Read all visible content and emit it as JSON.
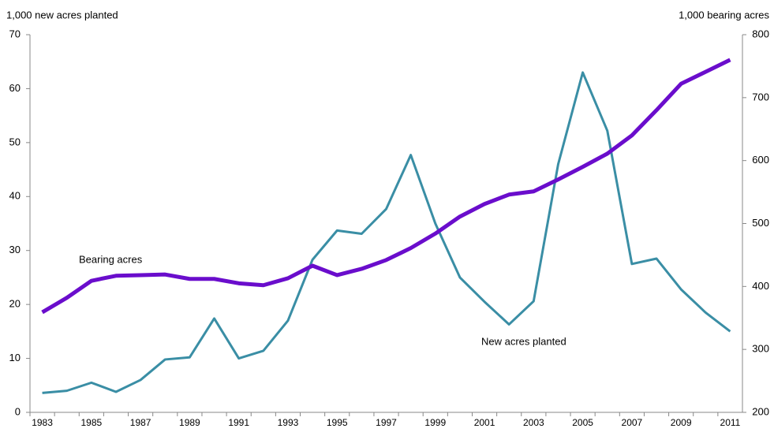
{
  "chart_data": {
    "type": "line",
    "y_label": "1,000 new acres planted",
    "y2_label": "1,000 bearing  acres",
    "categories": [
      "1983",
      null,
      "1985",
      null,
      "1987",
      null,
      "1989",
      null,
      "1991",
      null,
      "1993",
      null,
      "1995",
      null,
      "1997",
      null,
      "1999",
      null,
      "2001",
      null,
      "2003",
      null,
      "2005",
      null,
      "2007",
      null,
      "2009",
      null,
      "2011"
    ],
    "series": [
      {
        "name": "New acres planted",
        "color": "#3a8ea5",
        "values": [
          3.6,
          4.0,
          5.5,
          3.8,
          6.0,
          9.8,
          10.2,
          17.4,
          10.0,
          11.4,
          17.0,
          28.3,
          33.7,
          33.1,
          37.7,
          47.7,
          35.0,
          25.0,
          20.5,
          16.3,
          20.6,
          46.0,
          63.0,
          52.2,
          27.5,
          28.5,
          22.8,
          18.5,
          15.0
        ]
      },
      {
        "name": "Bearing acres",
        "color": "#6a0dcc",
        "axis": "y2",
        "values": [
          359,
          382,
          409,
          417,
          418,
          419,
          412,
          412,
          405,
          402,
          413,
          433,
          418,
          428,
          442,
          461,
          484,
          511,
          531,
          546,
          551,
          570,
          590,
          611,
          640,
          680,
          722,
          741,
          760
        ]
      }
    ],
    "ylim": [
      0,
      70
    ],
    "yticks": [
      0,
      10,
      20,
      30,
      40,
      50,
      60,
      70
    ],
    "y2lim": [
      200,
      800
    ],
    "y2ticks": [
      200,
      300,
      400,
      500,
      600,
      700,
      800
    ],
    "grid": false
  }
}
